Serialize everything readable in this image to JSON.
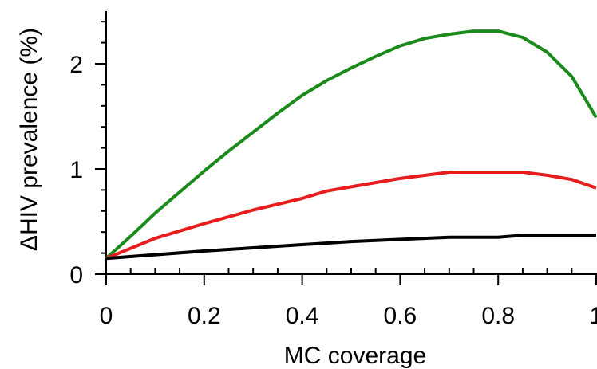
{
  "chart_data": {
    "type": "line",
    "xlabel": "MC coverage",
    "ylabel": "ΔHIV prevalence (%)",
    "xlim": [
      0,
      1
    ],
    "ylim": [
      0,
      2.5
    ],
    "xticks": [
      0,
      0.2,
      0.4,
      0.6,
      0.8,
      1
    ],
    "xtick_labels": [
      "0",
      "0.2",
      "0.4",
      "0.6",
      "0.8",
      "1"
    ],
    "yticks": [
      0,
      1,
      2
    ],
    "ytick_labels": [
      "0",
      "1",
      "2"
    ],
    "grid": false,
    "legend": "none",
    "series": [
      {
        "color": "#1a8a1a",
        "x": [
          0,
          0.05,
          0.1,
          0.15,
          0.2,
          0.25,
          0.3,
          0.35,
          0.4,
          0.45,
          0.5,
          0.55,
          0.6,
          0.65,
          0.7,
          0.75,
          0.8,
          0.85,
          0.9,
          0.95,
          1.0
        ],
        "y": [
          0.15,
          0.36,
          0.58,
          0.78,
          0.98,
          1.17,
          1.35,
          1.53,
          1.7,
          1.84,
          1.96,
          2.07,
          2.17,
          2.24,
          2.28,
          2.31,
          2.31,
          2.25,
          2.11,
          1.88,
          1.49
        ]
      },
      {
        "color": "#e81c1c",
        "x": [
          0,
          0.1,
          0.2,
          0.3,
          0.4,
          0.45,
          0.5,
          0.6,
          0.7,
          0.8,
          0.85,
          0.9,
          0.95,
          1.0
        ],
        "y": [
          0.15,
          0.34,
          0.48,
          0.61,
          0.72,
          0.79,
          0.83,
          0.91,
          0.97,
          0.97,
          0.97,
          0.94,
          0.9,
          0.82
        ]
      },
      {
        "color": "#000000",
        "x": [
          0,
          0.2,
          0.4,
          0.5,
          0.6,
          0.7,
          0.8,
          0.85,
          0.9,
          1.0
        ],
        "y": [
          0.15,
          0.22,
          0.28,
          0.31,
          0.33,
          0.35,
          0.35,
          0.37,
          0.37,
          0.37
        ]
      }
    ]
  }
}
